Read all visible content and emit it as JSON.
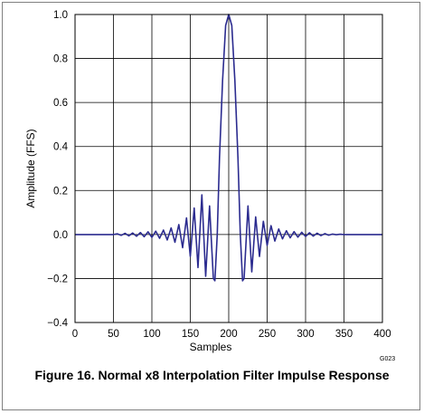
{
  "chart_data": {
    "type": "line",
    "title": "Figure 16. Normal x8 Interpolation Filter Impulse Response",
    "xlabel": "Samples",
    "ylabel": "Amplitude (FFS)",
    "xlim": [
      0,
      400
    ],
    "ylim": [
      -0.4,
      1.0
    ],
    "xticks": [
      0,
      50,
      100,
      150,
      200,
      250,
      300,
      350,
      400
    ],
    "xtick_labels": [
      "0",
      "50",
      "100",
      "150",
      "200",
      "250",
      "300",
      "350",
      "400"
    ],
    "yticks": [
      -0.4,
      -0.2,
      0.0,
      0.2,
      0.4,
      0.6,
      0.8,
      1.0
    ],
    "ytick_labels": [
      "−0.4",
      "−0.2",
      "0.0",
      "0.2",
      "0.4",
      "0.6",
      "0.8",
      "1.0"
    ],
    "grid": true,
    "line_color": "#2b2b8f",
    "series": [
      {
        "x": [
          0,
          50,
          55,
          60,
          65,
          70,
          75,
          80,
          85,
          90,
          95,
          100,
          105,
          110,
          115,
          120,
          125,
          130,
          135,
          140,
          145,
          150,
          155,
          160,
          165,
          170,
          175,
          180,
          182,
          185,
          188,
          192,
          196,
          200,
          204,
          208,
          212,
          215,
          218,
          220,
          225,
          230,
          235,
          240,
          245,
          250,
          255,
          260,
          265,
          270,
          275,
          280,
          285,
          290,
          295,
          300,
          305,
          310,
          315,
          320,
          325,
          330,
          335,
          340,
          345,
          350,
          400
        ],
        "y": [
          0,
          0,
          0.003,
          -0.004,
          0.005,
          -0.006,
          0.007,
          -0.008,
          0.009,
          -0.01,
          0.012,
          -0.013,
          0.015,
          -0.017,
          0.02,
          -0.025,
          0.03,
          -0.035,
          0.045,
          -0.06,
          0.075,
          -0.1,
          0.12,
          -0.15,
          0.18,
          -0.19,
          0.13,
          -0.2,
          -0.21,
          0.0,
          0.35,
          0.7,
          0.95,
          1.0,
          0.95,
          0.7,
          0.35,
          0.0,
          -0.21,
          -0.2,
          0.13,
          -0.17,
          0.08,
          -0.1,
          0.06,
          -0.05,
          0.04,
          -0.03,
          0.025,
          -0.02,
          0.017,
          -0.015,
          0.013,
          -0.012,
          0.01,
          -0.009,
          0.008,
          -0.007,
          0.006,
          -0.005,
          0.004,
          -0.003,
          0.002,
          -0.001,
          0.001,
          0,
          0
        ]
      }
    ]
  },
  "figure_code": "G023"
}
